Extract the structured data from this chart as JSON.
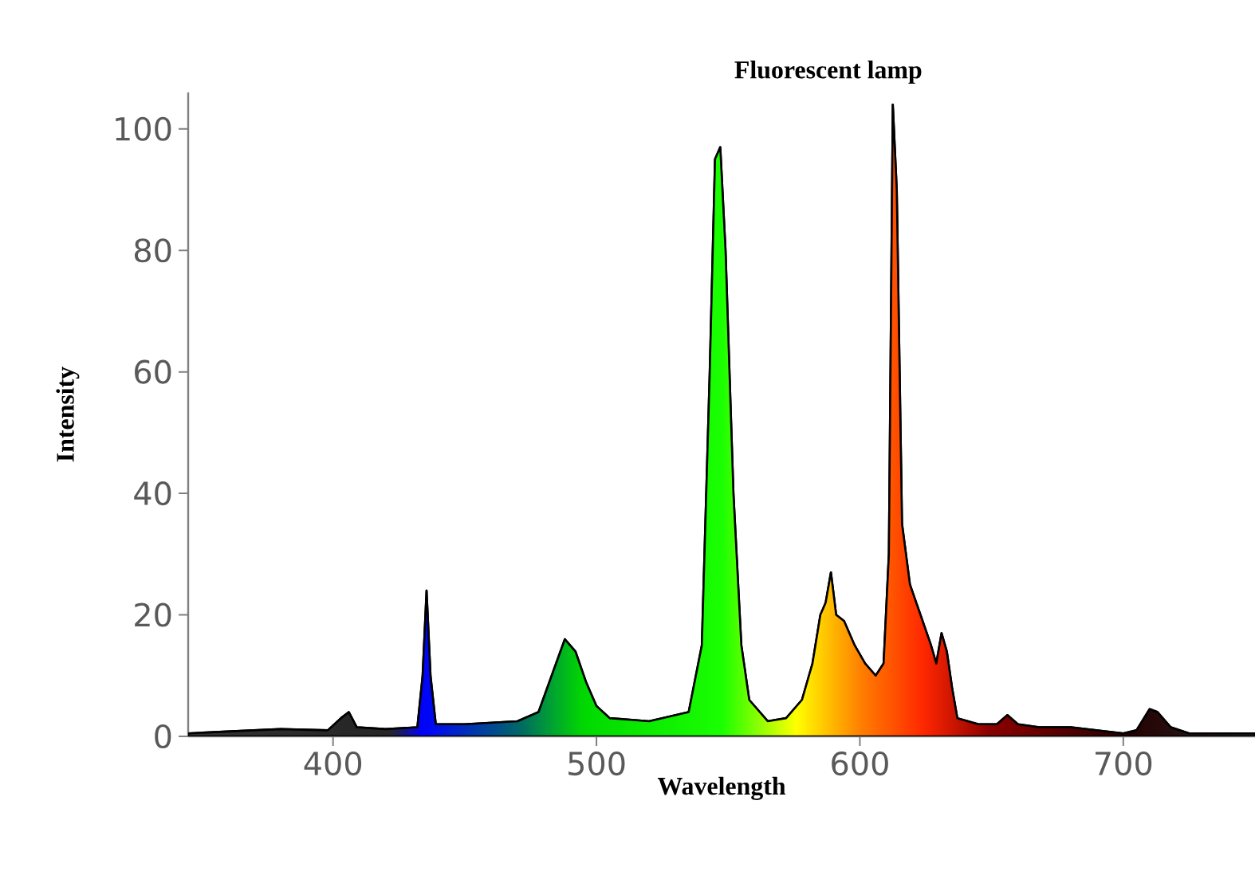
{
  "chart_data": {
    "type": "area",
    "title": "Fluorescent lamp",
    "xlabel": "Wavelength",
    "ylabel": "Intensity",
    "xlim": [
      345,
      750
    ],
    "xticks": [
      400,
      500,
      600,
      700
    ],
    "ylim": [
      0,
      106
    ],
    "yticks": [
      0,
      20,
      40,
      60,
      80,
      100
    ],
    "grid": false,
    "series": [
      {
        "color": "#000000",
        "x": [
          345,
          360,
          380,
          398,
          403,
          406,
          409,
          420,
          432,
          434,
          435.5,
          437,
          439,
          450,
          470,
          478,
          483,
          488,
          492,
          496,
          500,
          505,
          520,
          535,
          540,
          543,
          545,
          547,
          549,
          552,
          555,
          558,
          565,
          572,
          578,
          582,
          585,
          587,
          589,
          591,
          594,
          598,
          602,
          606,
          609,
          611,
          612.5,
          614,
          616,
          619,
          623,
          627,
          629,
          631,
          633,
          635,
          637,
          645,
          652,
          656,
          660,
          668,
          680,
          700,
          705,
          710,
          713,
          718,
          725,
          750
        ],
        "values": [
          0.5,
          0.8,
          1.2,
          1,
          3,
          4,
          1.5,
          1.2,
          1.5,
          10,
          24,
          10,
          2,
          2,
          2.5,
          4,
          10,
          16,
          14,
          9,
          5,
          3,
          2.5,
          4,
          15,
          60,
          95,
          97,
          80,
          40,
          15,
          6,
          2.5,
          3,
          6,
          12,
          20,
          22,
          27,
          20,
          19,
          15,
          12,
          10,
          12,
          30,
          104,
          90,
          35,
          25,
          20,
          15,
          12,
          17,
          14,
          8,
          3,
          2,
          2,
          3.5,
          2,
          1.5,
          1.5,
          0.5,
          1,
          4.5,
          4,
          1.5,
          0.5,
          0.5
        ]
      }
    ]
  }
}
